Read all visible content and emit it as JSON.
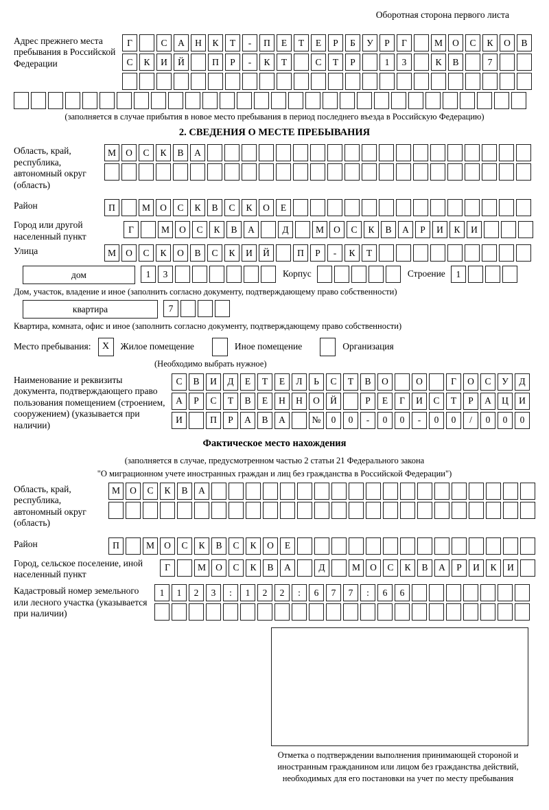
{
  "header": {
    "note": "Оборотная сторона первого листа"
  },
  "prev_address": {
    "label": "Адрес прежнего места пребывания в Российской Федерации",
    "rows": [
      {
        "count": 24,
        "text": "Г САНКТ-ПЕТЕРБУРГ МОСКОВ"
      },
      {
        "count": 24,
        "text": "СКИЙ ПР-КТ СТР 13 КВ 7"
      },
      {
        "count": 24,
        "text": ""
      },
      {
        "count": 30,
        "text": ""
      }
    ],
    "caption": "(заполняется в случае прибытия в новое место пребывания в период последнего въезда в Российскую Федерацию)"
  },
  "section2": {
    "title": "2. СВЕДЕНИЯ О МЕСТЕ ПРЕБЫВАНИЯ",
    "region": {
      "label": "Область, край, республика, автономный округ (область)",
      "rows": [
        {
          "count": 25,
          "text": "МОСКВА"
        },
        {
          "count": 25,
          "text": ""
        }
      ]
    },
    "district": {
      "label": "Район",
      "row": {
        "count": 25,
        "text": "П МОСКВСКОЕ"
      }
    },
    "city": {
      "label": "Город или другой населенный пункт",
      "row": {
        "count": 24,
        "text": "Г МОСКВА Д МОСКВАРИКИ"
      }
    },
    "street": {
      "label": "Улица",
      "row": {
        "count": 25,
        "text": "МОСКОВСКИЙ ПР-КТ"
      }
    },
    "house": {
      "type_label": "дом",
      "number": {
        "count": 8,
        "text": "13"
      },
      "korpus_label": "Корпус",
      "korpus": {
        "count": 5,
        "text": ""
      },
      "stroenie_label": "Строение",
      "stroenie": {
        "count": 4,
        "text": "1"
      }
    },
    "house_caption": "Дом, участок, владение и иное (заполнить согласно документу, подтверждающему право собственности)",
    "apartment": {
      "type_label": "квартира",
      "number": {
        "count": 4,
        "text": "7"
      }
    },
    "apartment_caption": "Квартира, комната, офис и иное (заполнить согласно документу, подтверждающему право собственности)",
    "stay": {
      "label": "Место пребывания:",
      "options": [
        {
          "label": "Жилое помещение",
          "mark": "X"
        },
        {
          "label": "Иное помещение",
          "mark": ""
        },
        {
          "label": "Организация",
          "mark": ""
        }
      ],
      "note": "(Необходимо выбрать нужное)"
    },
    "document": {
      "label": "Наименование и реквизиты документа, подтверждающего право пользования помещением (строением, сооружением) (указывается при наличии)",
      "rows": [
        {
          "count": 21,
          "text": "СВИДЕТЕЛЬСТВО О ГОСУД"
        },
        {
          "count": 21,
          "text": "АРСТВЕННОЙ РЕГИСТРАЦИ"
        },
        {
          "count": 21,
          "text": "И ПРАВА №00-00-00/000"
        }
      ]
    }
  },
  "actual": {
    "title": "Фактическое место нахождения",
    "caption1": "(заполняется в случае, предусмотренном частью 2 статьи 21 Федерального закона",
    "caption2": "\"О миграционном учете иностранных граждан и лиц без гражданства в Российской Федерации\")",
    "region": {
      "label": "Область, край, республика, автономный округ (область)",
      "rows": [
        {
          "count": 25,
          "text": "МОСКВА"
        },
        {
          "count": 25,
          "text": ""
        }
      ]
    },
    "district": {
      "label": "Район",
      "row": {
        "count": 25,
        "text": "П МОСКВСКОЕ"
      }
    },
    "city": {
      "label": "Город, сельское поселение, иной населенный пункт",
      "row": {
        "count": 22,
        "text": "Г МОСКВА Д МОСКВАРИКИ"
      }
    },
    "cadastral": {
      "label": "Кадастровый номер земельного или лесного участка (указывается при наличии)",
      "rows": [
        {
          "count": 22,
          "text": "1123:122:677:66"
        },
        {
          "count": 22,
          "text": ""
        }
      ]
    },
    "stamp_caption": "Отметка о подтверждении выполнения принимающей стороной и иностранным гражданином или лицом без гражданства действий, необходимых для его постановки на учет по месту пребывания"
  }
}
